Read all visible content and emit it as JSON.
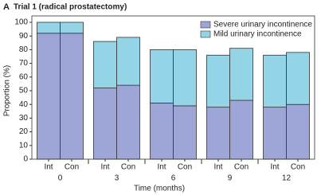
{
  "chart_data": {
    "type": "stacked-bar",
    "panel_label": "A",
    "title": "Trial 1 (radical prostatectomy)",
    "x_label": "Time (months)",
    "y_label": "Proportion (%)",
    "groups": [
      "0",
      "3",
      "6",
      "9",
      "12"
    ],
    "categories": [
      "Int",
      "Con",
      "Int",
      "Con",
      "Int",
      "Con",
      "Int",
      "Con",
      "Int",
      "Con"
    ],
    "series": [
      {
        "name": "Severe urinary incontinence",
        "color": "#9ea6d8",
        "values": [
          92,
          92,
          52,
          54,
          41,
          39,
          38,
          43,
          38,
          40
        ]
      },
      {
        "name": "Mild urinary incontinence",
        "color": "#93d4e6",
        "values": [
          8,
          8,
          34,
          35,
          39,
          41,
          38,
          38,
          38,
          38
        ]
      }
    ],
    "ylim": [
      0,
      100
    ],
    "yticks": [
      0,
      10,
      20,
      30,
      40,
      50,
      60,
      70,
      80,
      90,
      100
    ],
    "legend": "top-right"
  }
}
